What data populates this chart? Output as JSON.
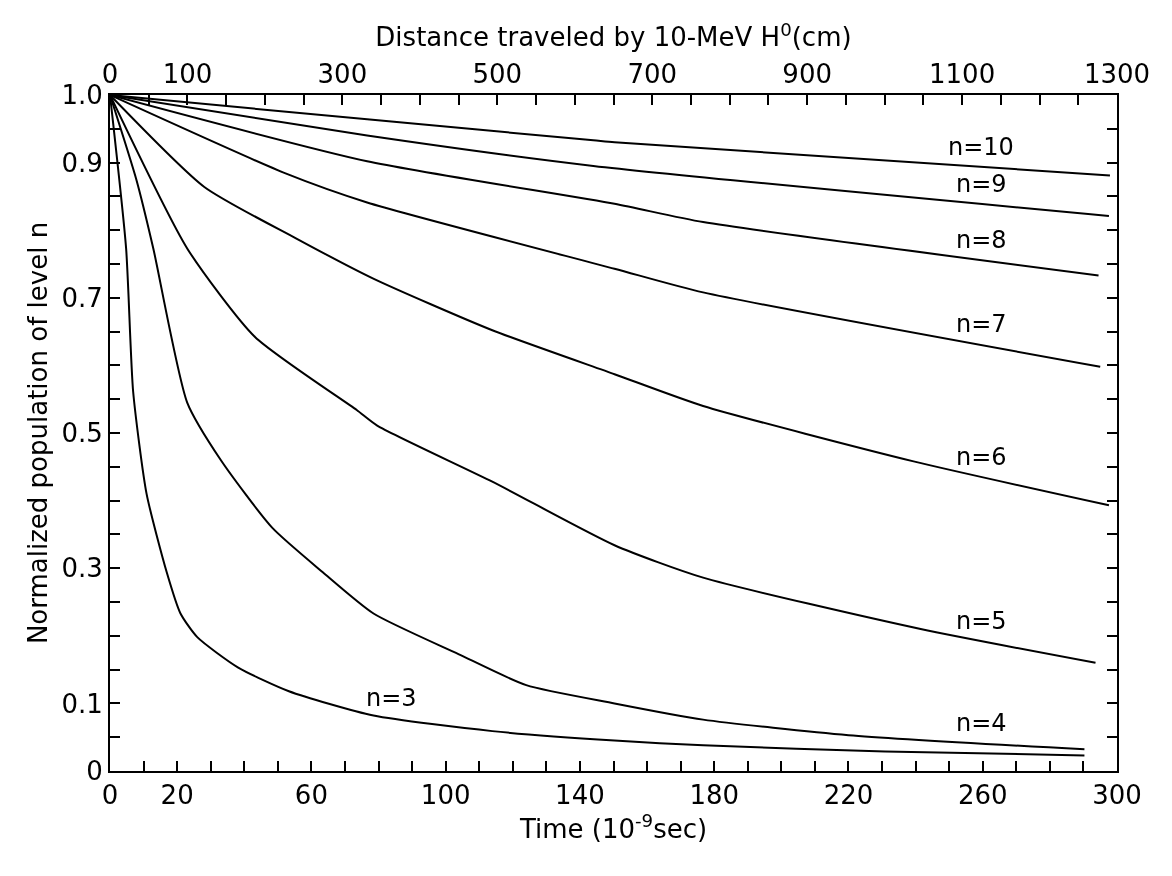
{
  "chart_data": {
    "type": "line",
    "xlabel": "Time (10$^{-9}$sec)",
    "x2label": "Distance traveled by 10-MeV H$^{0}$(cm)",
    "ylabel": "Normalized population of level n",
    "xlim": [
      0,
      300
    ],
    "xticks": [
      0,
      {
        "value": 10,
        "label": null
      },
      20,
      {
        "value": 30,
        "label": null
      },
      {
        "value": 40,
        "label": null
      },
      {
        "value": 50,
        "label": null
      },
      60,
      {
        "value": 70,
        "label": null
      },
      {
        "value": 80,
        "label": null
      },
      {
        "value": 90,
        "label": null
      },
      100,
      {
        "value": 110,
        "label": null
      },
      {
        "value": 120,
        "label": null
      },
      {
        "value": 130,
        "label": null
      },
      140,
      {
        "value": 150,
        "label": null
      },
      {
        "value": 160,
        "label": null
      },
      {
        "value": 170,
        "label": null
      },
      180,
      {
        "value": 190,
        "label": null
      },
      {
        "value": 200,
        "label": null
      },
      {
        "value": 210,
        "label": null
      },
      220,
      {
        "value": 230,
        "label": null
      },
      {
        "value": 240,
        "label": null
      },
      {
        "value": 250,
        "label": null
      },
      260,
      {
        "value": 270,
        "label": null
      },
      {
        "value": 280,
        "label": null
      },
      {
        "value": 290,
        "label": null
      },
      300
    ],
    "x2lim": [
      0,
      1300
    ],
    "x2ticks": [
      0,
      {
        "value": 50,
        "label": null
      },
      100,
      {
        "value": 150,
        "label": null
      },
      {
        "value": 200,
        "label": null
      },
      {
        "value": 250,
        "label": null
      },
      300,
      {
        "value": 350,
        "label": null
      },
      {
        "value": 400,
        "label": null
      },
      {
        "value": 450,
        "label": null
      },
      500,
      {
        "value": 550,
        "label": null
      },
      {
        "value": 600,
        "label": null
      },
      {
        "value": 650,
        "label": null
      },
      700,
      {
        "value": 750,
        "label": null
      },
      {
        "value": 800,
        "label": null
      },
      {
        "value": 850,
        "label": null
      },
      900,
      {
        "value": 950,
        "label": null
      },
      {
        "value": 1000,
        "label": null
      },
      {
        "value": 1050,
        "label": null
      },
      1100,
      {
        "value": 1150,
        "label": null
      },
      {
        "value": 1200,
        "label": null
      },
      {
        "value": 1250,
        "label": null
      },
      1300
    ],
    "ylim": [
      0,
      1
    ],
    "yticks": [
      0,
      {
        "value": 0.05,
        "label": null
      },
      0.1,
      {
        "value": 0.15,
        "label": null
      },
      {
        "value": 0.2,
        "label": null
      },
      {
        "value": 0.25,
        "label": null
      },
      0.3,
      {
        "value": 0.35,
        "label": null
      },
      {
        "value": 0.4,
        "label": null
      },
      {
        "value": 0.45,
        "label": null
      },
      0.5,
      {
        "value": 0.55,
        "label": null
      },
      {
        "value": 0.6,
        "label": null
      },
      {
        "value": 0.65,
        "label": null
      },
      0.7,
      {
        "value": 0.75,
        "label": null
      },
      {
        "value": 0.8,
        "label": null
      },
      {
        "value": 0.85,
        "label": null
      },
      0.9,
      {
        "value": 0.95,
        "label": null
      },
      {
        "value": 1,
        "label": "1.0"
      }
    ],
    "legend": false,
    "marker": "none",
    "line_style": "solid",
    "series": [
      {
        "name": "n=10",
        "color": "#000000",
        "x": [
          0,
          76.6,
          144,
          150.3,
          297.9
        ],
        "values": [
          1,
          0.964,
          0.933,
          0.93,
          0.881
        ]
      },
      {
        "name": "n=9",
        "color": "#000000",
        "x": [
          0,
          76.6,
          144,
          297.6
        ],
        "values": [
          1,
          0.94,
          0.895,
          0.821
        ]
      },
      {
        "name": "n=8",
        "color": "#000000",
        "x": [
          0,
          76.6,
          150.3,
          176.7,
          294.5
        ],
        "values": [
          1,
          0.902,
          0.839,
          0.812,
          0.733
        ]
      },
      {
        "name": "n=7",
        "color": "#000000",
        "x": [
          0,
          52.3,
          76.6,
          150.3,
          176.7,
          295
        ],
        "values": [
          1,
          0.884,
          0.841,
          0.743,
          0.708,
          0.598
        ]
      },
      {
        "name": "n=6",
        "color": "#000000",
        "x": [
          0,
          28.1,
          55.4,
          78.6,
          113.9,
          150.3,
          176.7,
          239.4,
          297.6
        ],
        "values": [
          1,
          0.864,
          0.788,
          0.728,
          0.652,
          0.587,
          0.54,
          0.458,
          0.393
        ]
      },
      {
        "name": "n=5",
        "color": "#000000",
        "x": [
          0,
          23,
          43.2,
          73.5,
          79.6,
          113.9,
          150.3,
          176.7,
          241.5,
          293.6
        ],
        "values": [
          1,
          0.773,
          0.642,
          0.534,
          0.511,
          0.428,
          0.334,
          0.286,
          0.21,
          0.16
        ]
      },
      {
        "name": "n=4",
        "color": "#000000",
        "x": [
          0,
          7.9,
          12.9,
          23,
          33,
          48.3,
          63.4,
          78.5,
          103.8,
          124,
          150.3,
          176.7,
          220,
          290.3
        ],
        "values": [
          1,
          0.874,
          0.773,
          0.545,
          0.46,
          0.36,
          0.294,
          0.233,
          0.173,
          0.127,
          0.1,
          0.076,
          0.053,
          0.032
        ]
      },
      {
        "name": "n=3",
        "color": "#000000",
        "x": [
          0,
          4.8,
          6.9,
          10.9,
          16.9,
          21,
          26,
          38.2,
          53.3,
          78.5,
          113.9,
          150.3,
          176.7,
          230.9,
          290.3
        ],
        "values": [
          1,
          0.773,
          0.561,
          0.41,
          0.294,
          0.233,
          0.198,
          0.153,
          0.118,
          0.082,
          0.059,
          0.045,
          0.038,
          0.029,
          0.023
        ]
      }
    ]
  }
}
